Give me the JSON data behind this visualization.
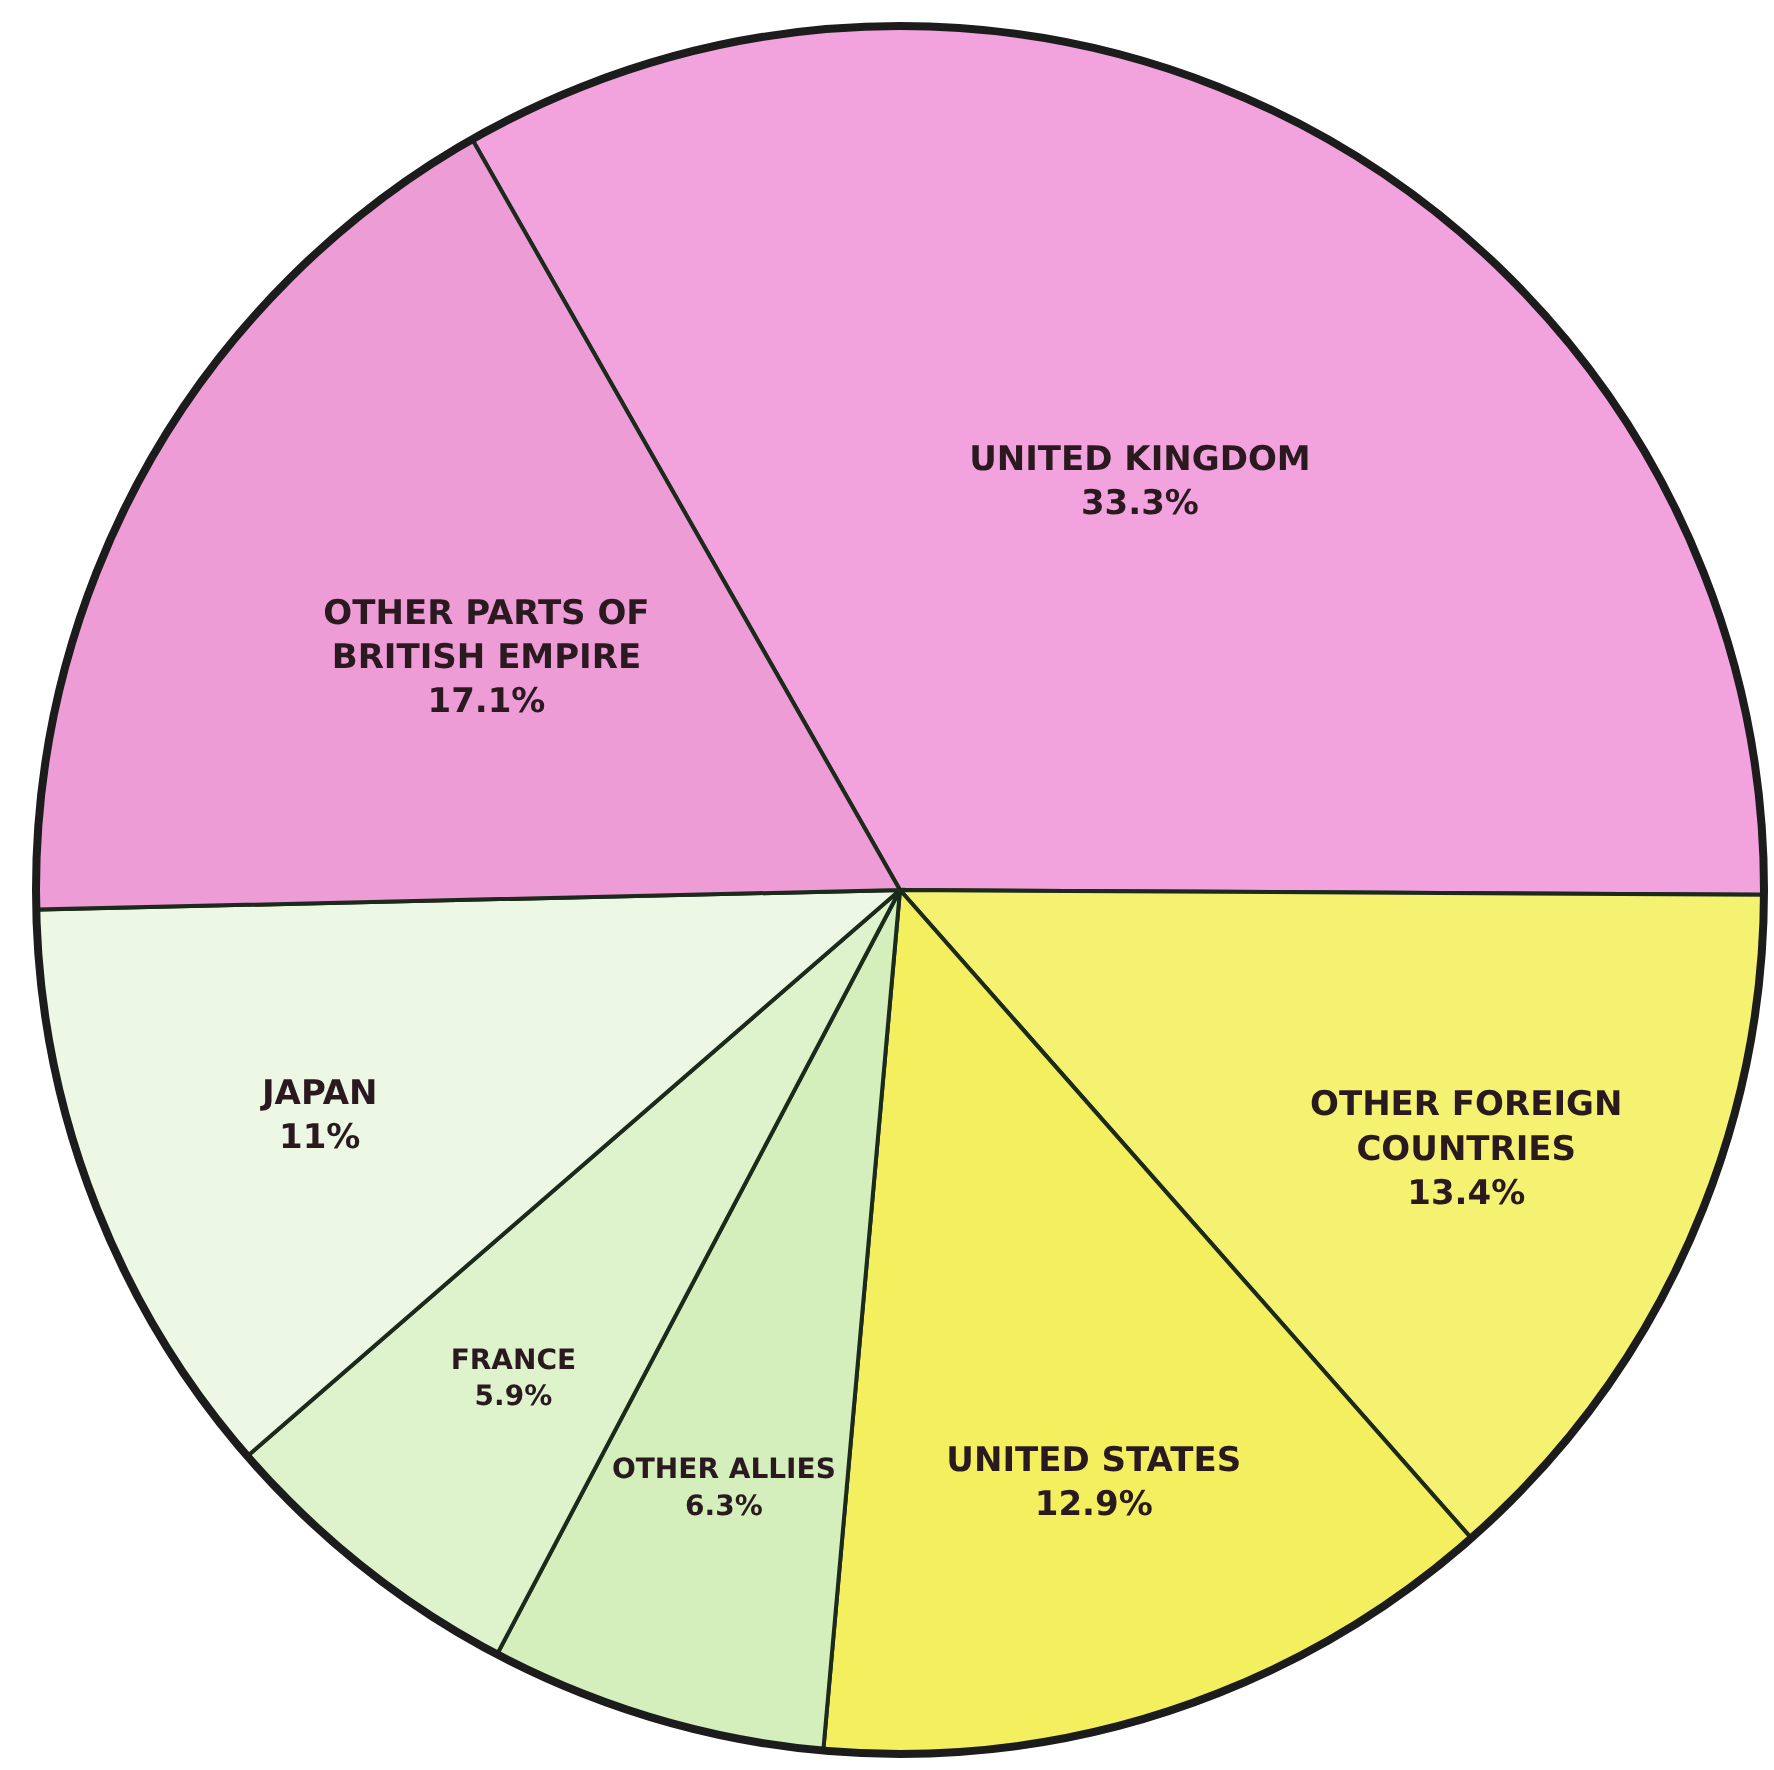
{
  "chart_data": {
    "type": "pie",
    "categories": [
      "UNITED KINGDOM",
      "OTHER FOREIGN COUNTRIES",
      "UNITED STATES",
      "OTHER ALLIES",
      "FRANCE",
      "JAPAN",
      "OTHER PARTS OF BRITISH EMPIRE"
    ],
    "values": [
      33.3,
      13.4,
      12.9,
      6.3,
      5.9,
      11,
      17.1
    ],
    "value_labels": [
      "33.3%",
      "13.4%",
      "12.9%",
      "6.3%",
      "5.9%",
      "11%",
      "17.1%"
    ],
    "colors": [
      "#f2a2dc",
      "#f5f272",
      "#f3ef5e",
      "#d4eebc",
      "#def3cc",
      "#ecf8e4",
      "#ee9cd6"
    ]
  }
}
